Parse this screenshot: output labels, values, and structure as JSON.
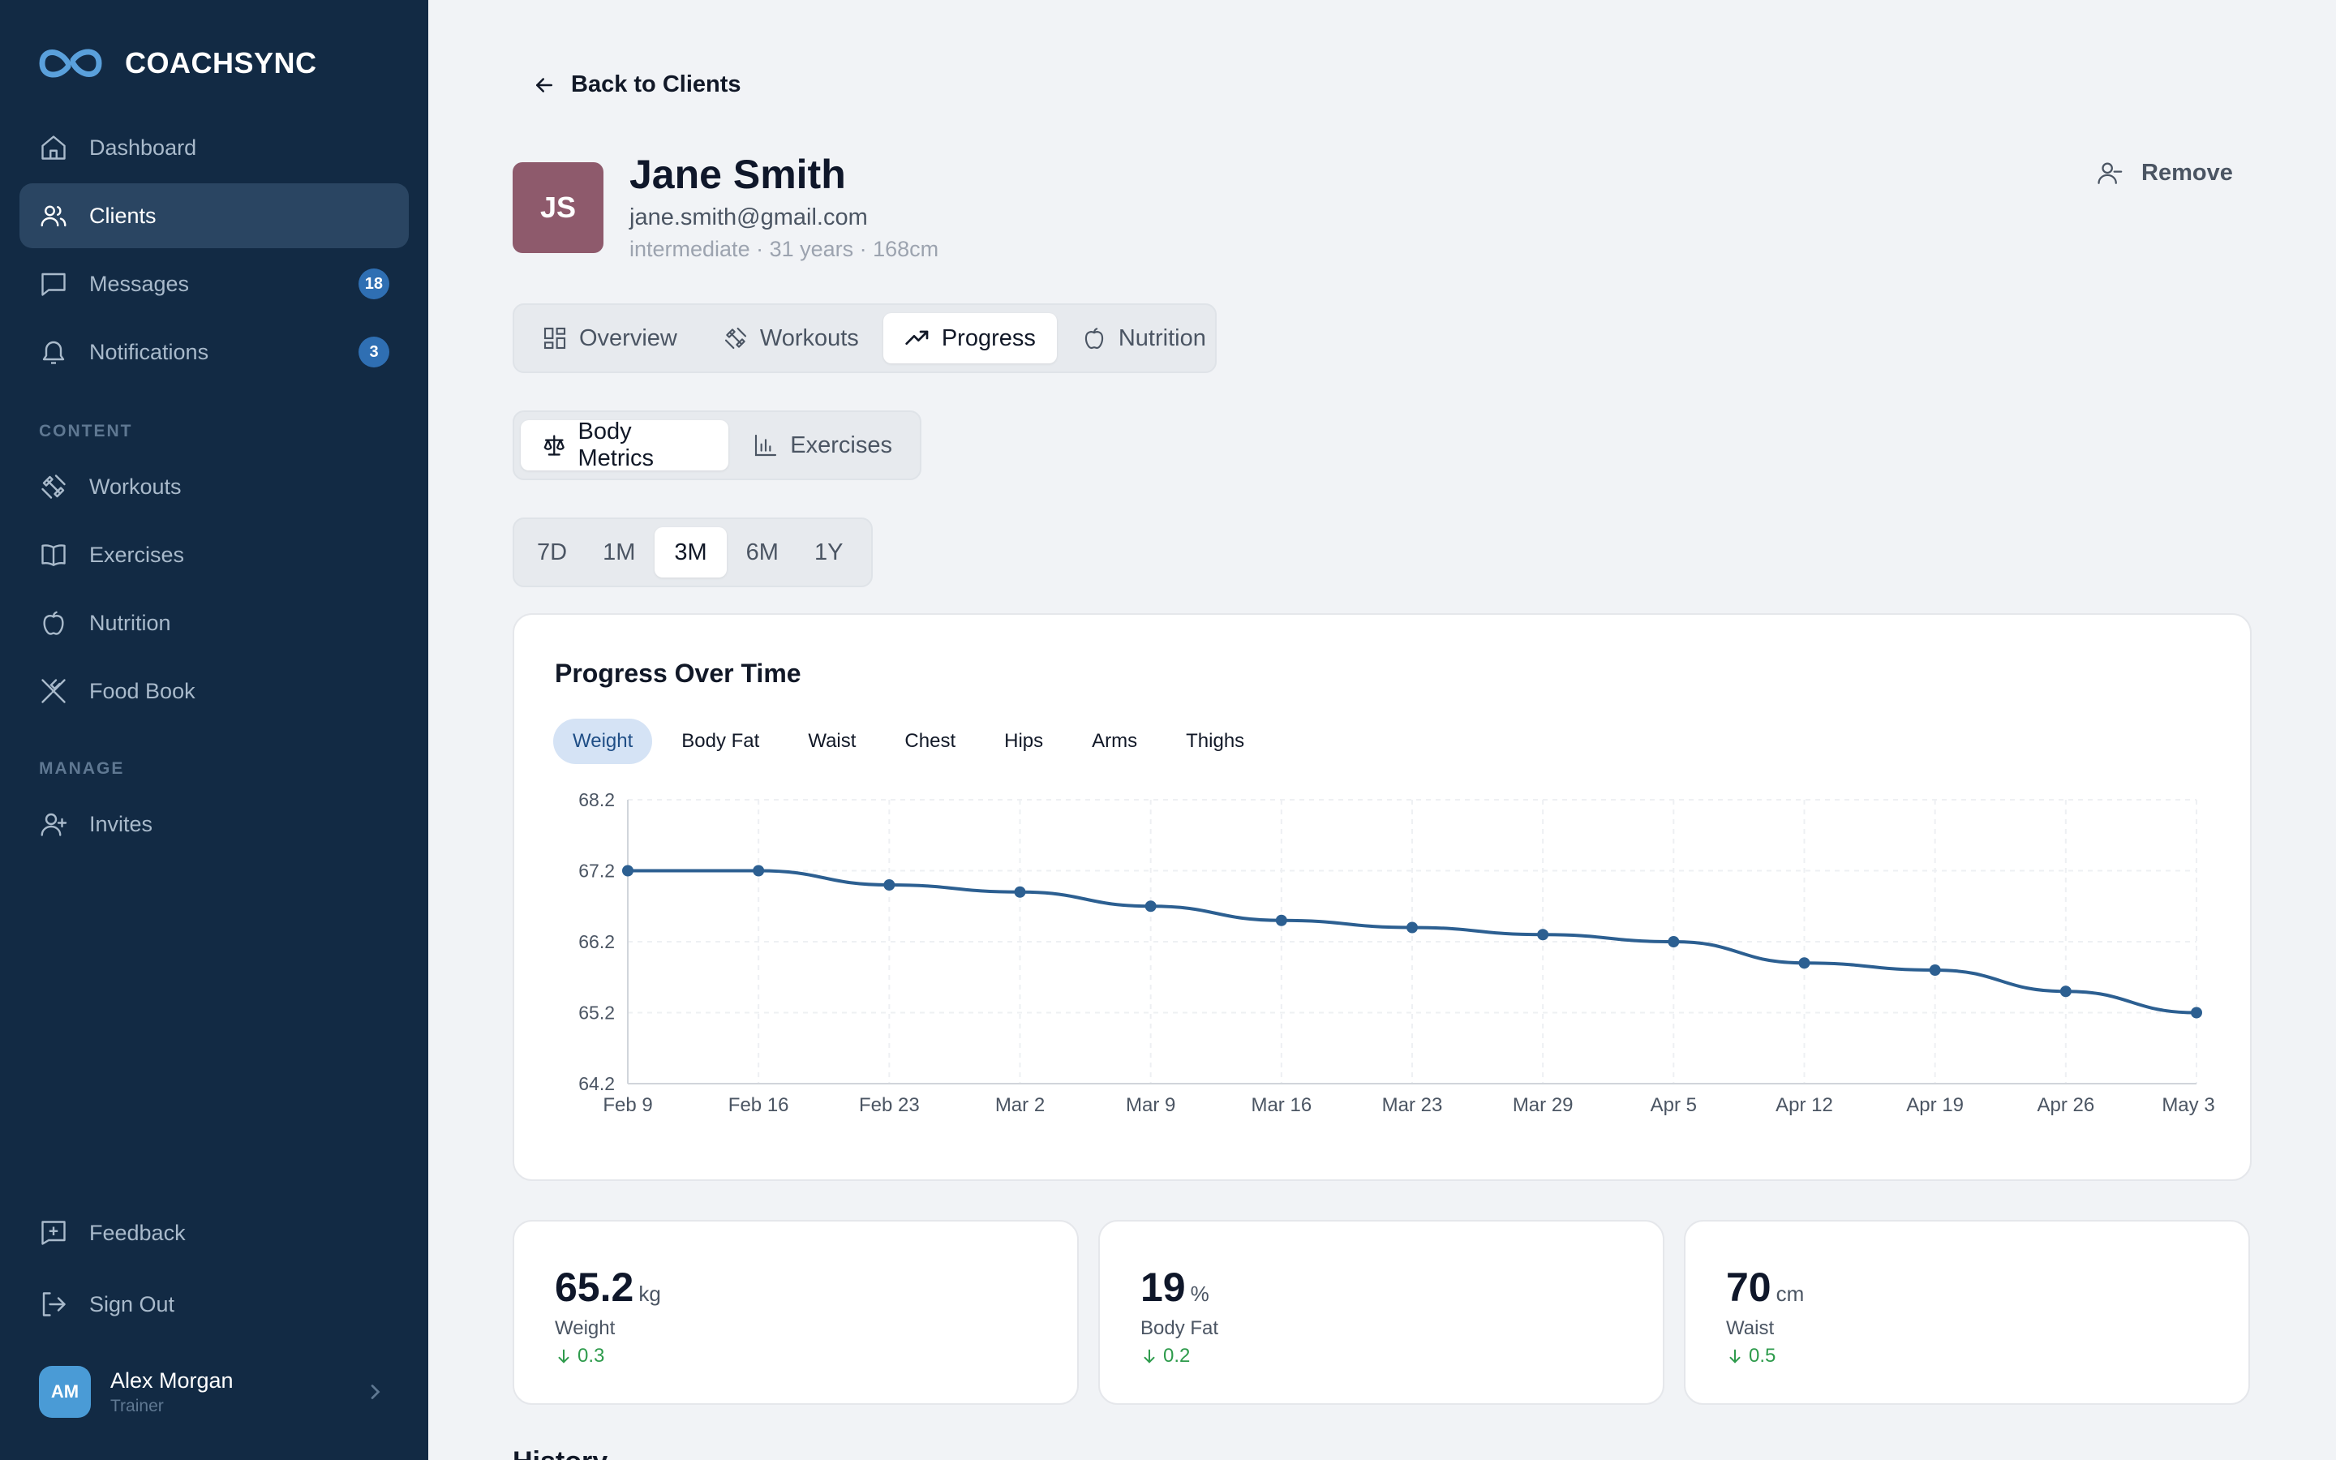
{
  "brand": {
    "name": "COACHSYNC"
  },
  "sidebar": {
    "nav": [
      {
        "label": "Dashboard",
        "icon": "home-icon"
      },
      {
        "label": "Clients",
        "icon": "users-icon",
        "active": true
      },
      {
        "label": "Messages",
        "icon": "message-icon",
        "badge": "18"
      },
      {
        "label": "Notifications",
        "icon": "bell-icon",
        "badge": "3"
      }
    ],
    "content_label": "CONTENT",
    "content": [
      {
        "label": "Workouts",
        "icon": "dumbbell-icon"
      },
      {
        "label": "Exercises",
        "icon": "book-icon"
      },
      {
        "label": "Nutrition",
        "icon": "apple-icon"
      },
      {
        "label": "Food Book",
        "icon": "utensils-icon"
      }
    ],
    "manage_label": "MANAGE",
    "manage": [
      {
        "label": "Invites",
        "icon": "user-plus-icon"
      }
    ],
    "bottom": [
      {
        "label": "Feedback",
        "icon": "feedback-icon"
      },
      {
        "label": "Sign Out",
        "icon": "sign-out-icon"
      }
    ],
    "user": {
      "initials": "AM",
      "name": "Alex Morgan",
      "role": "Trainer"
    }
  },
  "header": {
    "back_label": "Back to Clients",
    "client": {
      "initials": "JS",
      "name": "Jane Smith",
      "email": "jane.smith@gmail.com",
      "meta": "intermediate · 31 years · 168cm"
    },
    "remove_label": "Remove"
  },
  "tabs": [
    {
      "label": "Overview",
      "icon": "grid-icon"
    },
    {
      "label": "Workouts",
      "icon": "dumbbell-icon"
    },
    {
      "label": "Progress",
      "icon": "trend-up-icon",
      "active": true
    },
    {
      "label": "Nutrition",
      "icon": "apple-icon"
    }
  ],
  "subtabs": [
    {
      "label": "Body Metrics",
      "icon": "scale-icon",
      "active": true
    },
    {
      "label": "Exercises",
      "icon": "bar-chart-icon"
    }
  ],
  "ranges": [
    {
      "label": "7D"
    },
    {
      "label": "1M"
    },
    {
      "label": "3M",
      "active": true
    },
    {
      "label": "6M"
    },
    {
      "label": "1Y"
    }
  ],
  "chart_card": {
    "title": "Progress Over Time",
    "metrics": [
      {
        "label": "Weight",
        "active": true
      },
      {
        "label": "Body Fat"
      },
      {
        "label": "Waist"
      },
      {
        "label": "Chest"
      },
      {
        "label": "Hips"
      },
      {
        "label": "Arms"
      },
      {
        "label": "Thighs"
      }
    ]
  },
  "chart_data": {
    "type": "line",
    "title": "Progress Over Time",
    "x": [
      "Feb 9",
      "Feb 16",
      "Feb 23",
      "Mar 2",
      "Mar 9",
      "Mar 16",
      "Mar 23",
      "Mar 29",
      "Apr 5",
      "Apr 12",
      "Apr 19",
      "Apr 26",
      "May 3"
    ],
    "series": [
      {
        "name": "Weight",
        "values": [
          67.2,
          67.2,
          67.0,
          66.9,
          66.7,
          66.5,
          66.4,
          66.3,
          66.2,
          65.9,
          65.8,
          65.5,
          65.2
        ]
      }
    ],
    "y_ticks": [
      "68.2",
      "67.2",
      "66.2",
      "65.2",
      "64.2"
    ],
    "ylim": [
      64.2,
      68.2
    ],
    "grid": true,
    "line_color": "#2c5f91"
  },
  "stats": [
    {
      "value": "65.2",
      "unit": "kg",
      "label": "Weight",
      "delta": "0.3"
    },
    {
      "value": "19",
      "unit": "%",
      "label": "Body Fat",
      "delta": "0.2"
    },
    {
      "value": "70",
      "unit": "cm",
      "label": "Waist",
      "delta": "0.5"
    }
  ],
  "history_label": "History"
}
